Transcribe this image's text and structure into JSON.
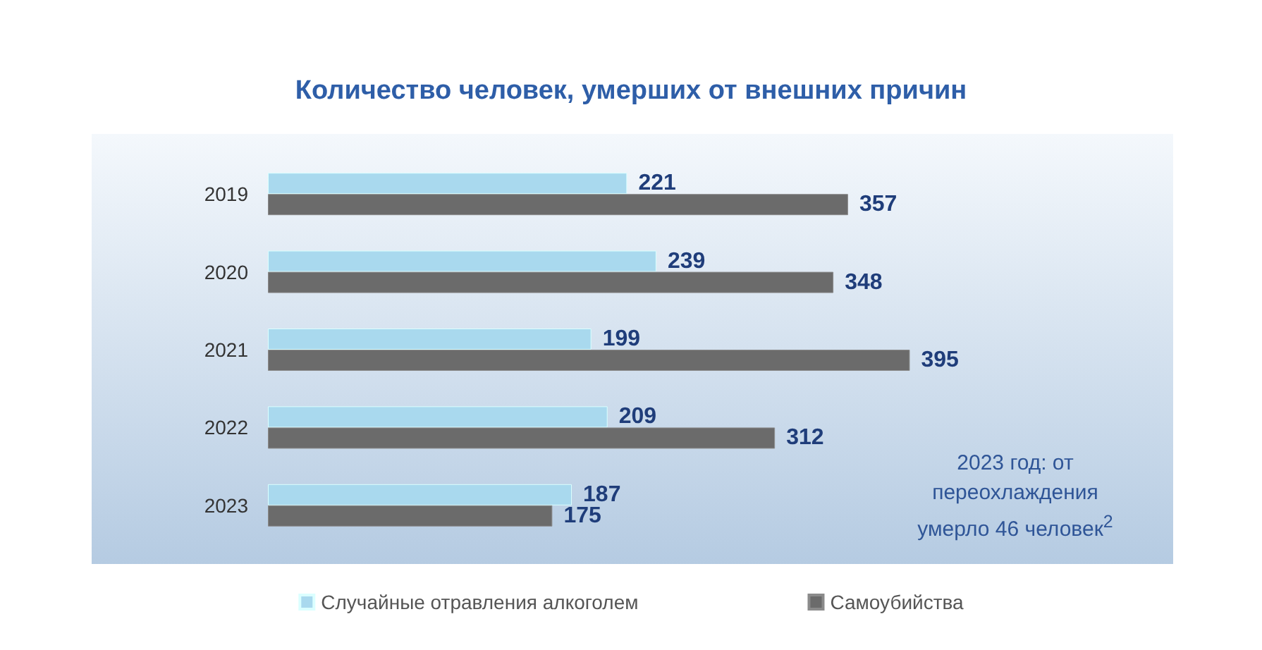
{
  "chart_data": {
    "type": "bar",
    "orientation": "horizontal",
    "title": "Количество человек, умерших от внешних причин",
    "categories": [
      "2019",
      "2020",
      "2021",
      "2022",
      "2023"
    ],
    "series": [
      {
        "name": "Случайные отравления алкоголем",
        "color": "#a9d9ee",
        "values": [
          221,
          239,
          199,
          209,
          187
        ]
      },
      {
        "name": "Самоубийства",
        "color": "#6b6b6b",
        "values": [
          357,
          348,
          395,
          312,
          175
        ]
      }
    ],
    "data_labels": true,
    "tick_labels": "y",
    "grid": false,
    "legend": "bottom",
    "annotations": [
      "2023 год: от переохлаждения умерло 46 человек$^{2}$"
    ]
  }
}
